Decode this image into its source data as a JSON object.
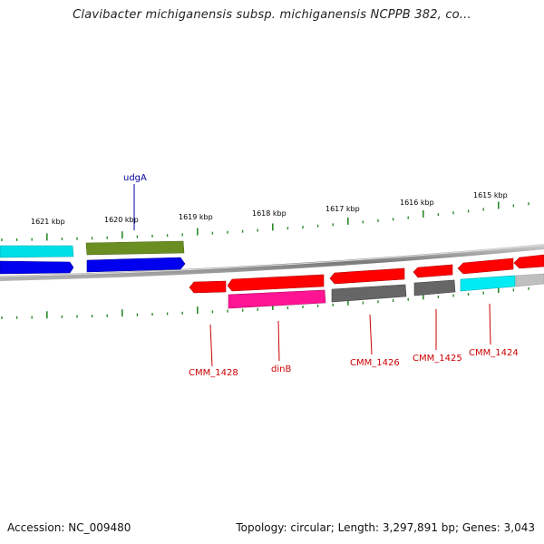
{
  "title": "Clavibacter michiganensis subsp. michiganensis NCPPB 382, co...",
  "footer": {
    "accession": "Accession: NC_009480",
    "summary": "Topology: circular; Length: 3,297,891 bp; Genes: 3,043"
  },
  "ruler": {
    "labels": [
      "1621 kbp",
      "1620 kbp",
      "1619 kbp",
      "1618 kbp",
      "1617 kbp",
      "1616 kbp",
      "1615 kbp"
    ]
  },
  "genes": {
    "upper": [
      {
        "name": "udgA",
        "color": "#000099"
      }
    ],
    "lower": [
      {
        "name": "CMM_1428",
        "color": "#cc0000"
      },
      {
        "name": "dinB",
        "color": "#cc0000"
      },
      {
        "name": "CMM_1426",
        "color": "#cc0000"
      },
      {
        "name": "CMM_1425",
        "color": "#cc0000"
      },
      {
        "name": "CMM_1424",
        "color": "#cc0000"
      }
    ]
  },
  "colors": {
    "backbone": "#8a8a8a",
    "tick": "#2a8a2a",
    "forward_cds": "#ff0000",
    "cyan_feature": "#00e5ee",
    "blue_feature": "#0000ee",
    "olive_feature": "#6b8e23",
    "magenta_feature": "#ff1493",
    "gray_feature": "#666666"
  }
}
